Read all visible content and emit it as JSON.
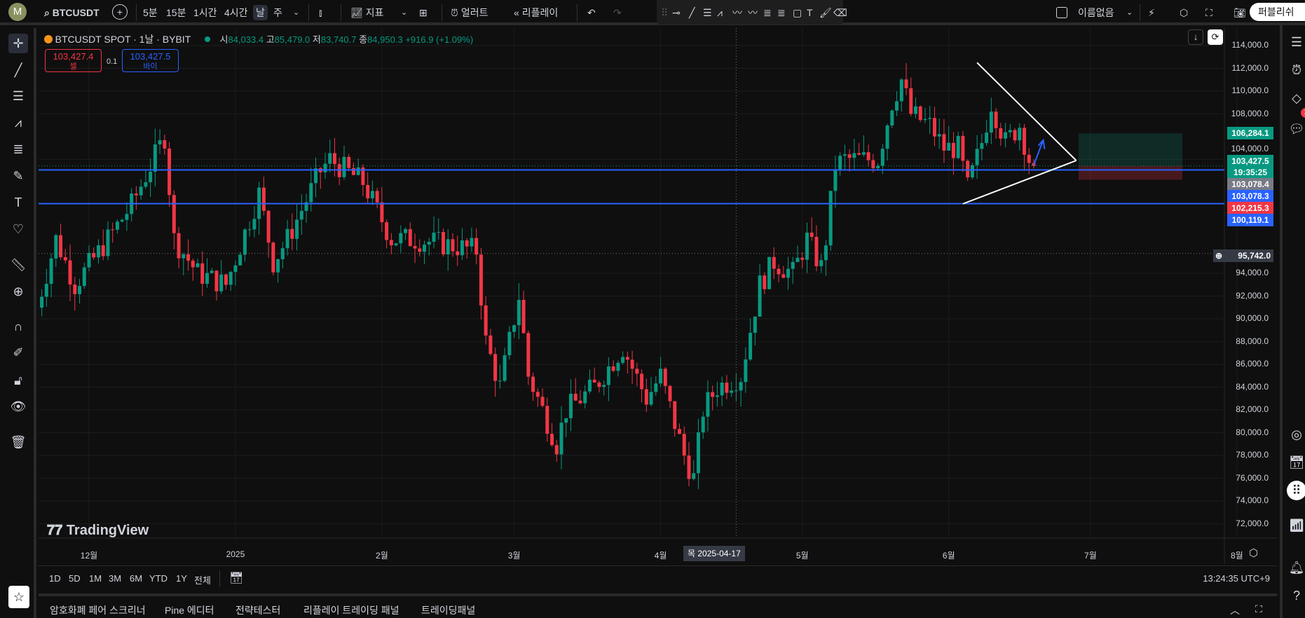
{
  "colors": {
    "up": "#089981",
    "down": "#f23645",
    "blue": "#2962ff",
    "bg": "#0f0f0f"
  },
  "topbar": {
    "avatar": "M",
    "symbol": "BTCUSDT",
    "intervals": [
      "5분",
      "15분",
      "1시간",
      "4시간",
      "날",
      "주"
    ],
    "selected_interval": "날",
    "indicators": "지표",
    "alert": "얼러트",
    "replay": "리플레이",
    "layout_name": "이름없음",
    "publish": "퍼블리쉬"
  },
  "legend": {
    "title": "BTCUSDT SPOT · 1날 · BYBIT",
    "o_label": "시",
    "o": "84,033.4",
    "h_label": "고",
    "h": "85,479.0",
    "l_label": "저",
    "l": "83,740.7",
    "c_label": "종",
    "c": "84,950.3",
    "change": "+916.9 (+1.09%)"
  },
  "order": {
    "sell_price": "103,427.4",
    "sell_label": "셀",
    "spread": "0.1",
    "buy_price": "103,427.5",
    "buy_label": "바이"
  },
  "price_axis": {
    "ticks": [
      114000,
      112000,
      110000,
      108000,
      104000,
      94000,
      92000,
      90000,
      88000,
      86000,
      84000,
      82000,
      80000,
      78000,
      76000,
      74000,
      72000
    ],
    "labels": [
      {
        "text": "106,284.1",
        "price": 106284.1,
        "color": "#089981"
      },
      {
        "text": "103,427.5",
        "sub": "19:35:25",
        "price": 103427.5,
        "color": "#089981"
      },
      {
        "text": "103,078.4",
        "price": 103078.4,
        "color": "#787b86"
      },
      {
        "text": "103,078.3",
        "price": 103078.3,
        "color": "#2962ff"
      },
      {
        "text": "102,215.3",
        "price": 102215.3,
        "color": "#f23645"
      },
      {
        "text": "100,119.1",
        "price": 100119.1,
        "color": "#2962ff"
      }
    ],
    "crosshair": "95,742.0"
  },
  "time_axis": {
    "labels": [
      [
        "12월",
        "2024-12-01"
      ],
      [
        "2025",
        "2025-01-01"
      ],
      [
        "2월",
        "2025-02-01"
      ],
      [
        "3월",
        "2025-03-01"
      ],
      [
        "4월",
        "2025-04-01"
      ],
      [
        "5월",
        "2025-05-01"
      ],
      [
        "6월",
        "2025-06-01"
      ],
      [
        "7월",
        "2025-07-01"
      ],
      [
        "8월",
        "2025-08-01"
      ]
    ],
    "crosshair": "목 2025-04-17"
  },
  "hlines": [
    103078.3,
    100119.1
  ],
  "price_path": [
    [
      "2024-11-20",
      91000
    ],
    [
      "2024-11-24",
      97000
    ],
    [
      "2024-11-28",
      93000
    ],
    [
      "2024-12-05",
      97000
    ],
    [
      "2024-12-10",
      100000
    ],
    [
      "2024-12-17",
      106000
    ],
    [
      "2024-12-19",
      97000
    ],
    [
      "2024-12-24",
      94000
    ],
    [
      "2024-12-30",
      93000
    ],
    [
      "2025-01-06",
      101000
    ],
    [
      "2025-01-09",
      95000
    ],
    [
      "2025-01-12",
      97000
    ],
    [
      "2025-01-19",
      103000
    ],
    [
      "2025-01-21",
      104000
    ],
    [
      "2025-01-28",
      102000
    ],
    [
      "2025-02-03",
      97000
    ],
    [
      "2025-02-08",
      97000
    ],
    [
      "2025-02-15",
      96500
    ],
    [
      "2025-02-21",
      96000
    ],
    [
      "2025-02-23",
      88000
    ],
    [
      "2025-02-26",
      84000
    ],
    [
      "2025-03-02",
      92000
    ],
    [
      "2025-03-04",
      85000
    ],
    [
      "2025-03-10",
      79000
    ],
    [
      "2025-03-12",
      82000
    ],
    [
      "2025-03-18",
      84000
    ],
    [
      "2025-03-24",
      87500
    ],
    [
      "2025-03-29",
      83000
    ],
    [
      "2025-04-01",
      85000
    ],
    [
      "2025-04-06",
      78000
    ],
    [
      "2025-04-08",
      76000
    ],
    [
      "2025-04-10",
      82000
    ],
    [
      "2025-04-13",
      84000
    ],
    [
      "2025-04-18",
      85000
    ],
    [
      "2025-04-22",
      93000
    ],
    [
      "2025-04-25",
      95000
    ],
    [
      "2025-04-29",
      94000
    ],
    [
      "2025-05-02",
      97000
    ],
    [
      "2025-05-05",
      94500
    ],
    [
      "2025-05-06",
      97000
    ],
    [
      "2025-05-08",
      103500
    ],
    [
      "2025-05-10",
      104000
    ],
    [
      "2025-05-17",
      104000
    ],
    [
      "2025-05-20",
      109000
    ],
    [
      "2025-05-22",
      111000
    ],
    [
      "2025-05-24",
      108000
    ],
    [
      "2025-05-28",
      107000
    ],
    [
      "2025-05-31",
      105000
    ],
    [
      "2025-06-03",
      105000
    ],
    [
      "2025-06-05",
      101500
    ],
    [
      "2025-06-08",
      105500
    ],
    [
      "2025-06-10",
      109000
    ],
    [
      "2025-06-13",
      105500
    ],
    [
      "2025-06-16",
      107000
    ],
    [
      "2025-06-18",
      104000
    ],
    [
      "2025-06-19",
      103427.5
    ]
  ],
  "logo": "TradingView",
  "range": [
    "1D",
    "5D",
    "1M",
    "3M",
    "6M",
    "YTD",
    "1Y",
    "전체"
  ],
  "clock": "13:24:35 UTC+9",
  "bottom_tabs": [
    "암호화폐 페어 스크리너",
    "Pine 에디터",
    "전략테스터",
    "리플레이 트레이딩 패널",
    "트레이딩패널"
  ],
  "badge": "1"
}
